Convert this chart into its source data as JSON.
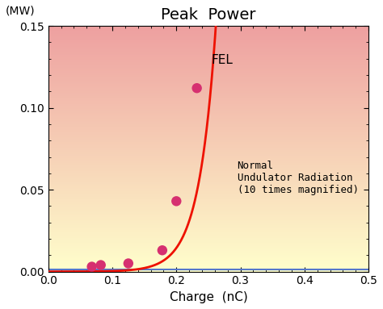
{
  "title": "Peak  Power",
  "ylabel_unit": "(MW)",
  "xlabel": "Charge （nC）",
  "xlim": [
    0,
    0.5
  ],
  "ylim": [
    0,
    0.15
  ],
  "yticks": [
    0,
    0.05,
    0.1,
    0.15
  ],
  "xticks": [
    0,
    0.1,
    0.2,
    0.3,
    0.4,
    0.5
  ],
  "fel_label": "FEL",
  "normal_label": "Normal\nUndulator Radiation\n(10 times magnified)",
  "data_points_x": [
    0.068,
    0.082,
    0.125,
    0.178,
    0.2,
    0.232
  ],
  "data_points_y": [
    0.003,
    0.004,
    0.005,
    0.013,
    0.043,
    0.112
  ],
  "point_color": "#d63070",
  "point_size": 80,
  "fel_curve_color": "#ee1100",
  "normal_line_color": "#5577cc",
  "normal_line_y": 0.0015,
  "bg_top_color": "#eea0a0",
  "bg_bottom_color": "#ffffcc",
  "title_fontsize": 14,
  "label_fontsize": 10,
  "tick_fontsize": 10,
  "annotation_fontsize": 9,
  "fel_curve_a": 4e-05,
  "fel_curve_b": 38.0,
  "fel_curve_c": 0.045
}
